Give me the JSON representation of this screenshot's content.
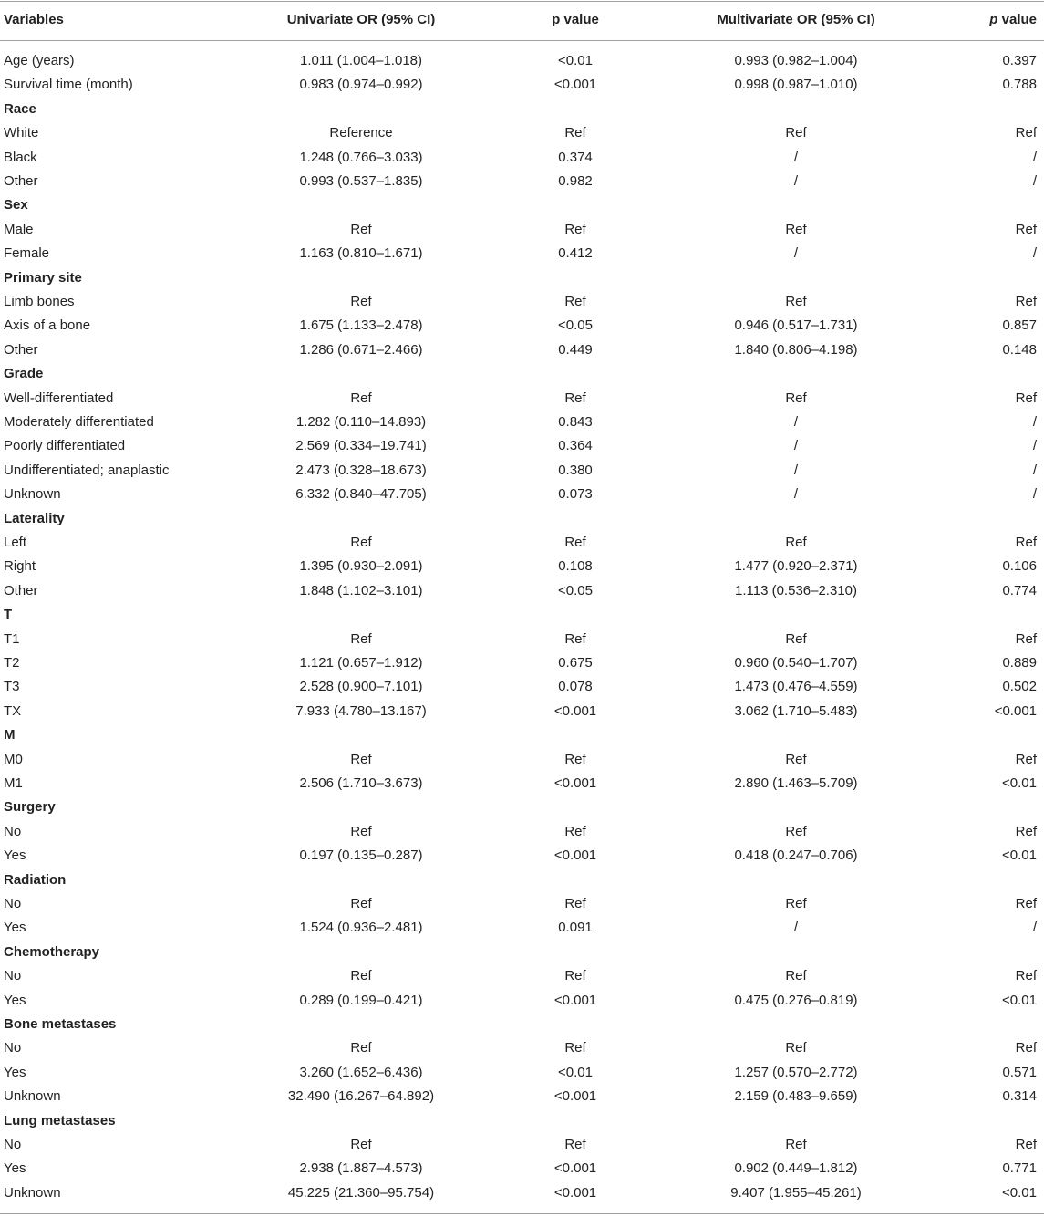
{
  "table": {
    "header": [
      "Variables",
      "Univariate OR (95% CI)",
      "p value",
      "Multivariate OR (95% CI)",
      "p value"
    ],
    "rows": [
      [
        "Age (years)",
        "1.011 (1.004–1.018)",
        "<0.01",
        "0.993 (0.982–1.004)",
        "0.397"
      ],
      [
        "Survival time (month)",
        "0.983 (0.974–0.992)",
        "<0.001",
        "0.998 (0.987–1.010)",
        "0.788"
      ],
      [
        "Race"
      ],
      [
        "White",
        "Reference",
        "Ref",
        "Ref",
        "Ref"
      ],
      [
        "Black",
        "1.248 (0.766–3.033)",
        "0.374",
        "/",
        "/"
      ],
      [
        "Other",
        "0.993 (0.537–1.835)",
        "0.982",
        "/",
        "/"
      ],
      [
        "Sex"
      ],
      [
        "Male",
        "Ref",
        "Ref",
        "Ref",
        "Ref"
      ],
      [
        "Female",
        "1.163 (0.810–1.671)",
        "0.412",
        "/",
        "/"
      ],
      [
        "Primary site"
      ],
      [
        "Limb bones",
        "Ref",
        "Ref",
        "Ref",
        "Ref"
      ],
      [
        "Axis of a bone",
        "1.675 (1.133–2.478)",
        "<0.05",
        "0.946 (0.517–1.731)",
        "0.857"
      ],
      [
        "Other",
        "1.286 (0.671–2.466)",
        "0.449",
        "1.840 (0.806–4.198)",
        "0.148"
      ],
      [
        "Grade"
      ],
      [
        "Well-differentiated",
        "Ref",
        "Ref",
        "Ref",
        "Ref"
      ],
      [
        "Moderately differentiated",
        "1.282 (0.110–14.893)",
        "0.843",
        "/",
        "/"
      ],
      [
        "Poorly differentiated",
        "2.569 (0.334–19.741)",
        "0.364",
        "/",
        "/"
      ],
      [
        "Undifferentiated; anaplastic",
        "2.473 (0.328–18.673)",
        "0.380",
        "/",
        "/"
      ],
      [
        "Unknown",
        "6.332 (0.840–47.705)",
        "0.073",
        "/",
        "/"
      ],
      [
        "Laterality"
      ],
      [
        "Left",
        "Ref",
        "Ref",
        "Ref",
        "Ref"
      ],
      [
        "Right",
        "1.395 (0.930–2.091)",
        "0.108",
        "1.477 (0.920–2.371)",
        "0.106"
      ],
      [
        "Other",
        "1.848 (1.102–3.101)",
        "<0.05",
        "1.113 (0.536–2.310)",
        "0.774"
      ],
      [
        "T"
      ],
      [
        "T1",
        "Ref",
        "Ref",
        "Ref",
        "Ref"
      ],
      [
        "T2",
        "1.121 (0.657–1.912)",
        "0.675",
        "0.960 (0.540–1.707)",
        "0.889"
      ],
      [
        "T3",
        "2.528 (0.900–7.101)",
        "0.078",
        "1.473 (0.476–4.559)",
        "0.502"
      ],
      [
        "TX",
        "7.933 (4.780–13.167)",
        "<0.001",
        "3.062 (1.710–5.483)",
        "<0.001"
      ],
      [
        "M"
      ],
      [
        "M0",
        "Ref",
        "Ref",
        "Ref",
        "Ref"
      ],
      [
        "M1",
        "2.506 (1.710–3.673)",
        "<0.001",
        "2.890 (1.463–5.709)",
        "<0.01"
      ],
      [
        "Surgery"
      ],
      [
        "No",
        "Ref",
        "Ref",
        "Ref",
        "Ref"
      ],
      [
        "Yes",
        "0.197 (0.135–0.287)",
        "<0.001",
        "0.418 (0.247–0.706)",
        "<0.01"
      ],
      [
        "Radiation"
      ],
      [
        "No",
        "Ref",
        "Ref",
        "Ref",
        "Ref"
      ],
      [
        "Yes",
        "1.524 (0.936–2.481)",
        "0.091",
        "/",
        "/"
      ],
      [
        "Chemotherapy"
      ],
      [
        "No",
        "Ref",
        "Ref",
        "Ref",
        "Ref"
      ],
      [
        "Yes",
        "0.289 (0.199–0.421)",
        "<0.001",
        "0.475 (0.276–0.819)",
        "<0.01"
      ],
      [
        "Bone metastases"
      ],
      [
        "No",
        "Ref",
        "Ref",
        "Ref",
        "Ref"
      ],
      [
        "Yes",
        "3.260 (1.652–6.436)",
        "<0.01",
        "1.257 (0.570–2.772)",
        "0.571"
      ],
      [
        "Unknown",
        "32.490 (16.267–64.892)",
        "<0.001",
        "2.159 (0.483–9.659)",
        "0.314"
      ],
      [
        "Lung metastases"
      ],
      [
        "No",
        "Ref",
        "Ref",
        "Ref",
        "Ref"
      ],
      [
        "Yes",
        "2.938 (1.887–4.573)",
        "<0.001",
        "0.902 (0.449–1.812)",
        "0.771"
      ],
      [
        "Unknown",
        "45.225 (21.360–95.754)",
        "<0.001",
        "9.407 (1.955–45.261)",
        "<0.01"
      ]
    ]
  }
}
